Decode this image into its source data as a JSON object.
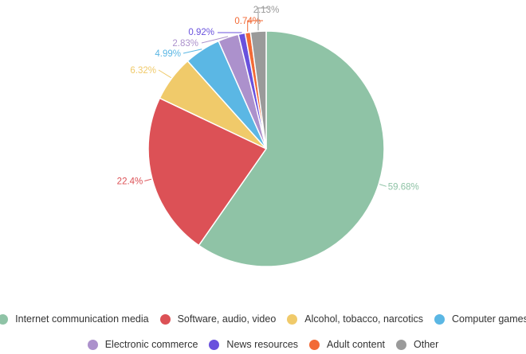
{
  "chart_data": {
    "type": "pie",
    "title": "",
    "legend_position": "bottom",
    "slices": [
      {
        "name": "Internet communication media",
        "value": 59.68,
        "label": "59.68%",
        "color": "#8fc3a6"
      },
      {
        "name": "Software, audio, video",
        "value": 22.4,
        "label": "22.4%",
        "color": "#dc5156"
      },
      {
        "name": "Alcohol, tobacco, narcotics",
        "value": 6.32,
        "label": "6.32%",
        "color": "#f0ca6a"
      },
      {
        "name": "Computer games",
        "value": 4.99,
        "label": "4.99%",
        "color": "#5bb7e4"
      },
      {
        "name": "Electronic commerce",
        "value": 2.83,
        "label": "2.83%",
        "color": "#ac91cc"
      },
      {
        "name": "News resources",
        "value": 0.92,
        "label": "0.92%",
        "color": "#6951dd"
      },
      {
        "name": "Adult content",
        "value": 0.74,
        "label": "0.74%",
        "color": "#f26a36"
      },
      {
        "name": "Other",
        "value": 2.13,
        "label": "2.13%",
        "color": "#9a9a9a"
      }
    ]
  }
}
